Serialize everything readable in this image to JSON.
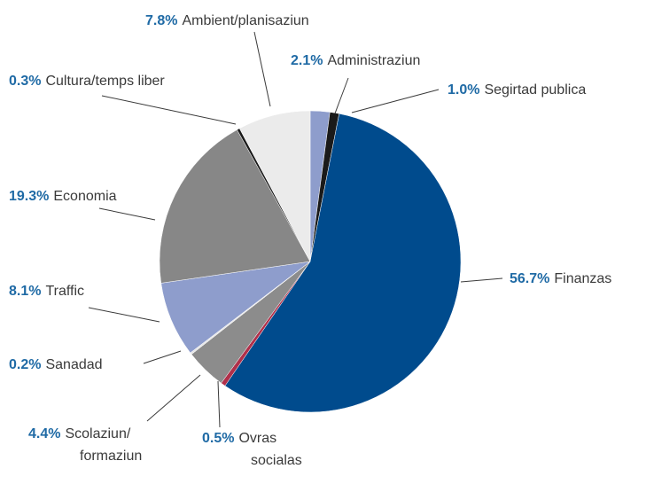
{
  "chart_data": {
    "type": "pie",
    "categories": [
      "Administraziun",
      "Segirtad publica",
      "Finanzas",
      "Ovras\nsocialas",
      "Scolaziun/\nformaziun",
      "Sanadad",
      "Traffic",
      "Economia",
      "Cultura/temps liber",
      "Ambient/planisaziun"
    ],
    "values": [
      2.1,
      1.0,
      56.7,
      0.5,
      4.4,
      0.2,
      8.1,
      19.3,
      0.3,
      7.8
    ],
    "value_labels": [
      "2.1%",
      "1.0%",
      "56.7%",
      "0.5%",
      "4.4%",
      "0.2%",
      "8.1%",
      "19.3%",
      "0.3%",
      "7.8%"
    ],
    "colors": [
      "#8e9dcc",
      "#1a1a1a",
      "#004b8d",
      "#b0304a",
      "#8c8c8c",
      "#e6e6e6",
      "#8e9dcc",
      "#878787",
      "#1a1a1a",
      "#ebebeb"
    ]
  }
}
